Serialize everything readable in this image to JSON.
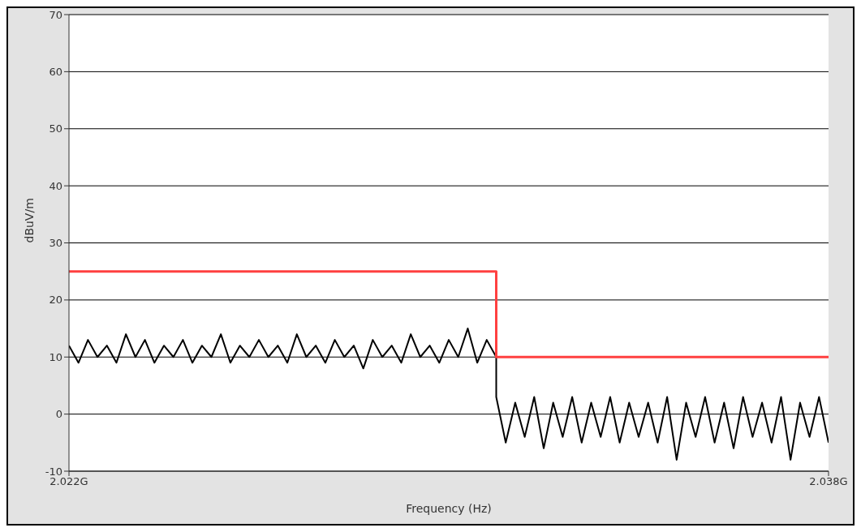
{
  "chart_data": {
    "type": "line",
    "xlabel": "Frequency (Hz)",
    "ylabel": "dBuV/m",
    "xlim": [
      2.022,
      2.038
    ],
    "xticks": [
      {
        "value": 2.022,
        "label": "2.022G"
      },
      {
        "value": 2.038,
        "label": "2.038G"
      }
    ],
    "ylim": [
      -10,
      70
    ],
    "yticks": [
      -10,
      0,
      10,
      20,
      30,
      40,
      50,
      60,
      70
    ],
    "grid": "y",
    "series": [
      {
        "color": "#000000",
        "x": [
          2.022,
          2.0222,
          2.0224,
          2.0226,
          2.0228,
          2.023,
          2.0232,
          2.0234,
          2.0236,
          2.0238,
          2.024,
          2.0242,
          2.0244,
          2.0246,
          2.0248,
          2.025,
          2.0252,
          2.0254,
          2.0256,
          2.0258,
          2.026,
          2.0262,
          2.0264,
          2.0266,
          2.0268,
          2.027,
          2.0272,
          2.0274,
          2.0276,
          2.0278,
          2.028,
          2.0282,
          2.0284,
          2.0286,
          2.0288,
          2.029,
          2.0292,
          2.0294,
          2.0296,
          2.0298,
          2.03,
          2.0302,
          2.0304,
          2.0306,
          2.0308,
          2.031,
          2.031,
          2.0312,
          2.0314,
          2.0316,
          2.0318,
          2.032,
          2.0322,
          2.0324,
          2.0326,
          2.0328,
          2.033,
          2.0332,
          2.0334,
          2.0336,
          2.0338,
          2.034,
          2.0342,
          2.0344,
          2.0346,
          2.0348,
          2.035,
          2.0352,
          2.0354,
          2.0356,
          2.0358,
          2.036,
          2.0362,
          2.0364,
          2.0366,
          2.0368,
          2.037,
          2.0372,
          2.0374,
          2.0376,
          2.0378,
          2.038
        ],
        "values": [
          12,
          9,
          13,
          10,
          12,
          9,
          14,
          10,
          13,
          9,
          12,
          10,
          13,
          9,
          12,
          10,
          14,
          9,
          12,
          10,
          13,
          10,
          12,
          9,
          14,
          10,
          12,
          9,
          13,
          10,
          12,
          8,
          13,
          10,
          12,
          9,
          14,
          10,
          12,
          9,
          13,
          10,
          15,
          9,
          13,
          10,
          3,
          -5,
          2,
          -4,
          3,
          -6,
          2,
          -4,
          3,
          -5,
          2,
          -4,
          3,
          -5,
          2,
          -4,
          2,
          -5,
          3,
          -8,
          2,
          -4,
          3,
          -5,
          2,
          -6,
          3,
          -4,
          2,
          -5,
          3,
          -8,
          2,
          -4,
          3,
          -5
        ]
      },
      {
        "type": "step",
        "color": "#ff4040",
        "x": [
          2.022,
          2.031,
          2.038
        ],
        "values": [
          25,
          10,
          10
        ]
      }
    ]
  }
}
